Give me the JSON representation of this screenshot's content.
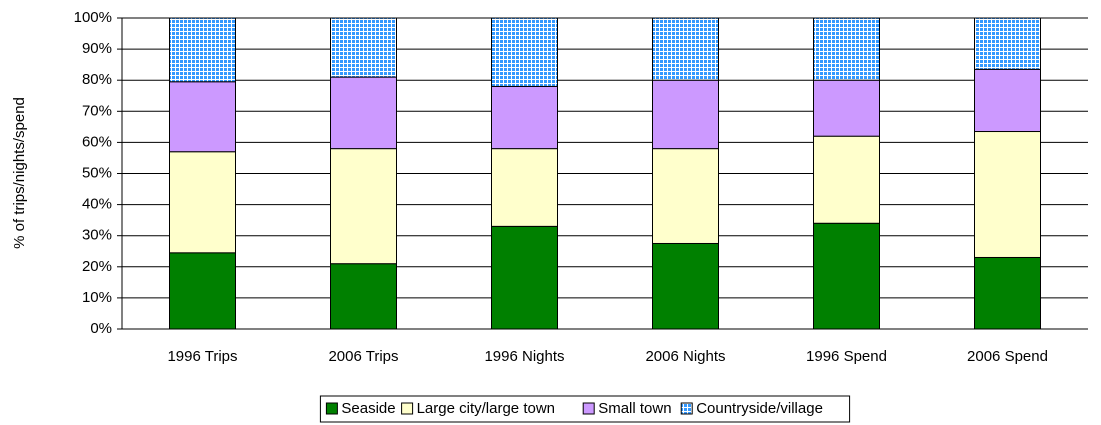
{
  "chart_data": {
    "type": "stacked_bar",
    "ylabel": "% of trips/nights/spend",
    "categories": [
      "1996 Trips",
      "2006 Trips",
      "1996 Nights",
      "2006 Nights",
      "1996 Spend",
      "2006 Spend"
    ],
    "series": [
      {
        "name": "Seaside",
        "color": "#008000",
        "values": [
          24.5,
          21,
          33,
          27.5,
          34,
          23
        ]
      },
      {
        "name": "Large city/large town",
        "color": "#ffffcc",
        "values": [
          32.5,
          37,
          25,
          30.5,
          28,
          40.5
        ]
      },
      {
        "name": "Small town",
        "color": "#cc99ff",
        "values": [
          22.5,
          23,
          20,
          22,
          18,
          20
        ]
      },
      {
        "name": "Countryside/village",
        "color": "#99ccff",
        "values": [
          20.5,
          19,
          22,
          20,
          20,
          16.5
        ]
      }
    ],
    "ylim": [
      0,
      100
    ],
    "yticks": [
      {
        "value": 0,
        "label": "0%"
      },
      {
        "value": 10,
        "label": "10%"
      },
      {
        "value": 20,
        "label": "20%"
      },
      {
        "value": 30,
        "label": "30%"
      },
      {
        "value": 40,
        "label": "40%"
      },
      {
        "value": 50,
        "label": "50%"
      },
      {
        "value": 60,
        "label": "60%"
      },
      {
        "value": 70,
        "label": "70%"
      },
      {
        "value": 80,
        "label": "80%"
      },
      {
        "value": 90,
        "label": "90%"
      },
      {
        "value": 100,
        "label": "100%"
      }
    ],
    "grid": true,
    "legend": "bottom"
  }
}
